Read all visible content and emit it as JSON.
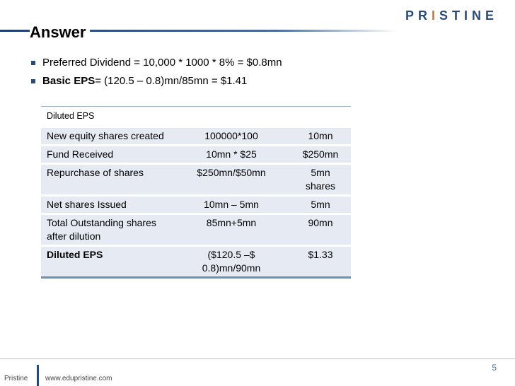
{
  "logo": {
    "text_before": "PR",
    "accent": "I",
    "text_after": "STINE"
  },
  "title": "Answer",
  "bullets": [
    {
      "bold": "",
      "text": "Preferred Dividend  = 10,000 * 1000 * 8% = $0.8mn"
    },
    {
      "bold": "Basic EPS",
      "text": " = (120.5 – 0.8)mn/85mn = $1.41"
    }
  ],
  "table": {
    "header": "Diluted EPS",
    "rows": [
      {
        "label": "New equity shares created",
        "calc": "100000*100",
        "value": "10mn"
      },
      {
        "label": "Fund Received",
        "calc": "10mn * $25",
        "value": "$250mn"
      },
      {
        "label": "Repurchase of shares",
        "calc": "$250mn/$50mn",
        "value": "5mn shares"
      },
      {
        "label": "Net shares Issued",
        "calc": "10mn – 5mn",
        "value": "5mn"
      },
      {
        "label": "Total Outstanding shares after dilution",
        "calc": "85mn+5mn",
        "value": "90mn"
      },
      {
        "label": "Diluted EPS",
        "calc": "($120.5 –$ 0.8)mn/90mn",
        "value": "$1.33"
      }
    ]
  },
  "footer": {
    "brand": "Pristine",
    "url": "www.edupristine.com",
    "page": "5"
  }
}
